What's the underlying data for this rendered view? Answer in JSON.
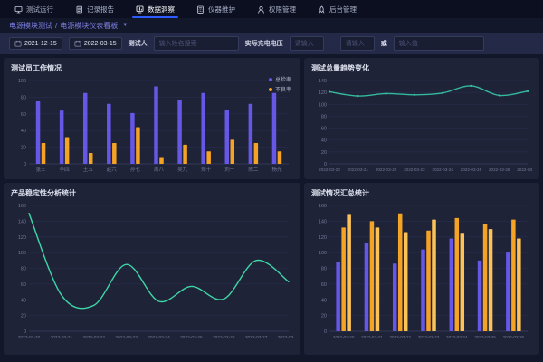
{
  "theme": {
    "topbar_bg": "#0b0f20",
    "page_bg": "#13172a",
    "panel_bg": "#1e2338",
    "accent_blue": "#2e5bff",
    "breadcrumb_color": "#7b7fe2",
    "purple": "#6757e6",
    "orange": "#f5a324",
    "yellow": "#fbc257",
    "teal": "#35b99c",
    "green": "#3fd6a6"
  },
  "nav": {
    "active_index": 2,
    "items": [
      {
        "label": "测试运行",
        "icon": "monitor-icon"
      },
      {
        "label": "记录报告",
        "icon": "report-icon"
      },
      {
        "label": "数据洞察",
        "icon": "insight-icon"
      },
      {
        "label": "仪器维护",
        "icon": "instrument-icon"
      },
      {
        "label": "权限管理",
        "icon": "permission-icon"
      },
      {
        "label": "后台管理",
        "icon": "admin-icon"
      }
    ]
  },
  "breadcrumb": {
    "part1": "电源模块测试",
    "separator": "/",
    "part2": "电源模块仪表看板",
    "caret": "▼"
  },
  "filters": {
    "date_start": "2021-12-15",
    "date_end": "2022-03-15",
    "tester_label": "测试人",
    "tester_placeholder": "输入姓名搜索",
    "voltage_label": "实际充电电压",
    "min_placeholder": "请输入",
    "tilde": "~",
    "max_placeholder": "请输入",
    "or_label": "或",
    "value_placeholder": "输入值"
  },
  "chart_data": [
    {
      "id": "tester-work",
      "type": "bar",
      "title": "测试员工作情况",
      "categories": [
        "张三",
        "李四",
        "王五",
        "赵六",
        "孙七",
        "周八",
        "吴九",
        "郑十",
        "刘一",
        "陈二",
        "杨光"
      ],
      "series": [
        {
          "name": "总检率",
          "color": "#6757e6",
          "values": [
            75,
            64,
            85,
            72,
            61,
            93,
            77,
            85,
            65,
            72,
            85
          ]
        },
        {
          "name": "不良率",
          "color": "#f5a324",
          "values": [
            25,
            32,
            13,
            25,
            44,
            7,
            23,
            15,
            29,
            25,
            15
          ]
        }
      ],
      "ylim": [
        0,
        100
      ],
      "yticks": [
        0,
        20,
        40,
        60,
        80,
        100
      ],
      "legend_position": "top-right",
      "grid": true
    },
    {
      "id": "total-trend",
      "type": "line",
      "title": "测试总量趋势变化",
      "x": [
        "2022-03-20",
        "2022-03-21",
        "2022-03-22",
        "2022-03-23",
        "2022-03-24",
        "2022-03-25",
        "2022-03-26",
        "2022-03-27"
      ],
      "values": [
        121,
        114,
        118,
        116,
        119,
        131,
        115,
        122
      ],
      "color": "#35b99c",
      "ylim": [
        0,
        140
      ],
      "yticks": [
        0,
        20,
        40,
        60,
        80,
        100,
        120,
        140
      ],
      "grid": true
    },
    {
      "id": "product-stability",
      "type": "line",
      "title": "产品稳定性分析统计",
      "x": [
        "2022-03-20",
        "2022-03-21",
        "2022-03-22",
        "2022-03-23",
        "2022-03-24",
        "2022-03-25",
        "2022-03-26",
        "2022-03-27",
        "2022-03-28"
      ],
      "values": [
        150,
        46,
        33,
        85,
        38,
        57,
        41,
        90,
        63
      ],
      "color": "#3fd6a6",
      "ylim": [
        0,
        160
      ],
      "yticks": [
        0,
        20,
        40,
        60,
        80,
        100,
        120,
        140,
        160
      ],
      "grid": true
    },
    {
      "id": "test-summary",
      "type": "bar",
      "title": "测试情况汇总统计",
      "categories": [
        "2022-03-20",
        "2022-03-21",
        "2022-03-22",
        "2022-03-23",
        "2022-03-24",
        "2022-03-25",
        "2022-03-26"
      ],
      "series": [
        {
          "name": "",
          "color": "#6757e6",
          "values": [
            88,
            112,
            86,
            104,
            118,
            90,
            100
          ]
        },
        {
          "name": "",
          "color": "#f5a324",
          "values": [
            132,
            140,
            150,
            128,
            144,
            136,
            142
          ]
        },
        {
          "name": "",
          "color": "#fbc257",
          "values": [
            148,
            132,
            126,
            142,
            124,
            130,
            118
          ]
        }
      ],
      "ylim": [
        0,
        160
      ],
      "yticks": [
        0,
        20,
        40,
        60,
        80,
        100,
        120,
        140,
        160
      ],
      "grid": true
    }
  ]
}
